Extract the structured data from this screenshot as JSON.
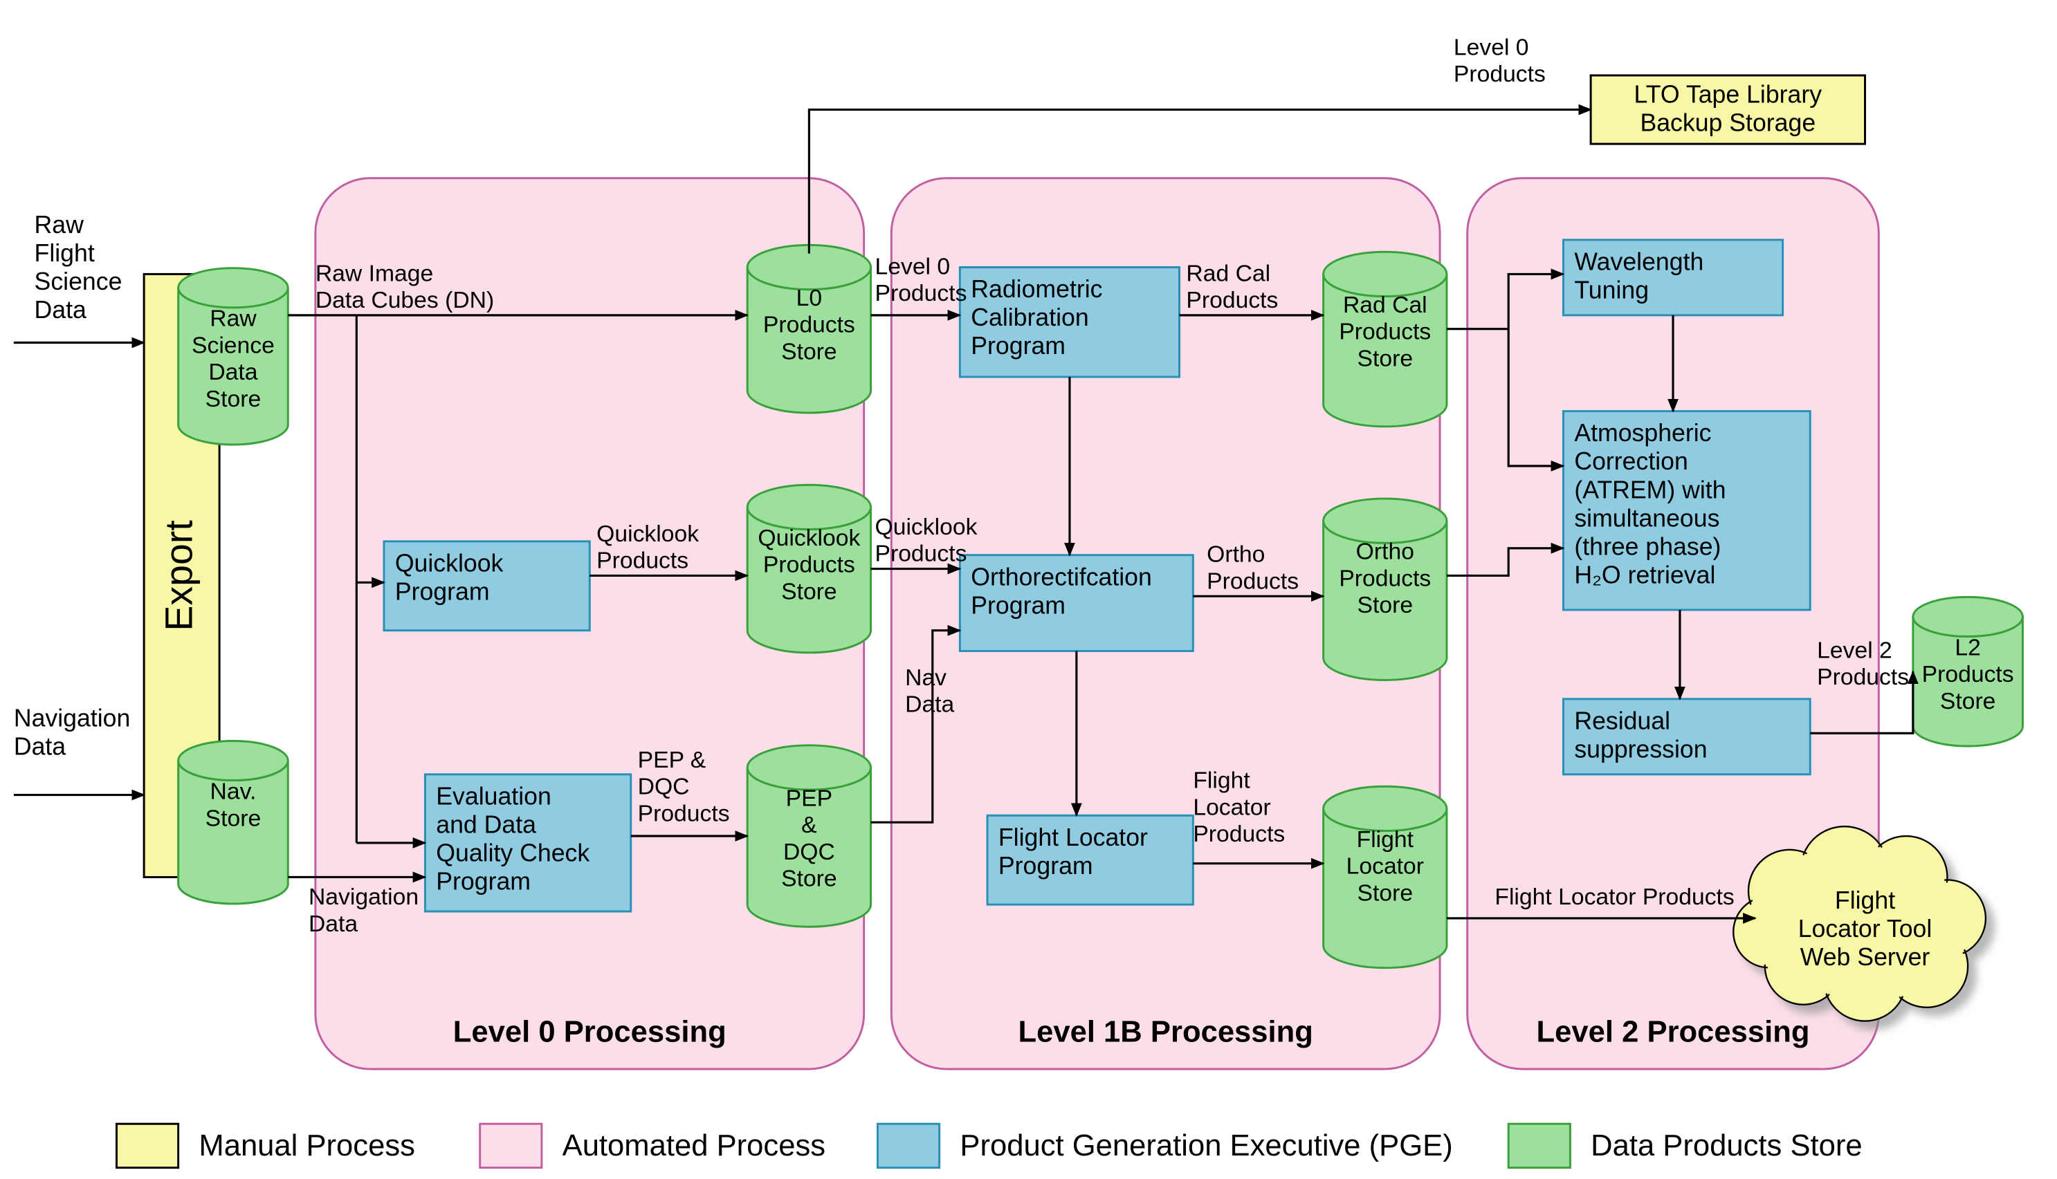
{
  "colors": {
    "manual_fill": "#f7f7a6",
    "manual_stroke": "#000000",
    "automated_fill": "#fbdeea",
    "automated_stroke": "#c060a0",
    "pge_fill": "#8fcce2",
    "pge_stroke": "#2a8fb5",
    "store_fill": "#9de09d",
    "store_stroke": "#3aa03a",
    "arrow": "#000000",
    "background": "#ffffff"
  },
  "inputs": {
    "raw_flight": "Raw\nFlight\nScience\nData",
    "navigation": "Navigation\nData"
  },
  "manual": {
    "export": "Export",
    "lto": "LTO Tape Library\nBackup Storage",
    "cloud": "Flight\nLocator Tool\nWeb Server"
  },
  "panels": {
    "level0": "Level 0 Processing",
    "level1b": "Level 1B Processing",
    "level2": "Level 2 Processing"
  },
  "stores": {
    "raw_science": "Raw\nScience\nData\nStore",
    "nav": "Nav.\nStore",
    "l0_products": "L0\nProducts\nStore",
    "quicklook_products": "Quicklook\nProducts\nStore",
    "pep_dqc": "PEP\n&\nDQC\nStore",
    "rad_cal": "Rad Cal\nProducts\nStore",
    "ortho": "Ortho\nProducts\nStore",
    "flight_locator": "Flight\nLocator\nStore",
    "l2": "L2\nProducts\nStore"
  },
  "pge": {
    "quicklook": "Quicklook\nProgram",
    "evaluation": "Evaluation\nand Data\nQuality Check\nProgram",
    "radiometric": "Radiometric\nCalibration\nProgram",
    "orthorectification": "Orthorectifcation\nProgram",
    "flight_locator": "Flight Locator\nProgram",
    "wavelength_tuning": "Wavelength\nTuning",
    "atmospheric": "Atmospheric\nCorrection\n(ATREM) with\nsimultaneous\n(three phase)\nH₂O retrieval",
    "residual": "Residual\nsuppression"
  },
  "edge_labels": {
    "raw_image": "Raw Image\nData Cubes (DN)",
    "navigation_data": "Navigation\nData",
    "quicklook_products": "Quicklook\nProducts",
    "pep_dqc_products": "PEP &\nDQC\nProducts",
    "level0_products": "Level 0\nProducts",
    "quicklook_products2": "Quicklook\nProducts",
    "nav_data": "Nav\nData",
    "rad_cal_products": "Rad Cal\nProducts",
    "ortho_products": "Ortho\nProducts",
    "flight_locator_products": "Flight\nLocator\nProducts",
    "level2_products": "Level 2\nProducts",
    "flight_locator_products2": "Flight Locator Products",
    "level0_products_top": "Level 0\nProducts"
  },
  "legend": {
    "manual": "Manual Process",
    "automated": "Automated Process",
    "pge": "Product Generation Executive (PGE)",
    "store": "Data Products Store"
  }
}
